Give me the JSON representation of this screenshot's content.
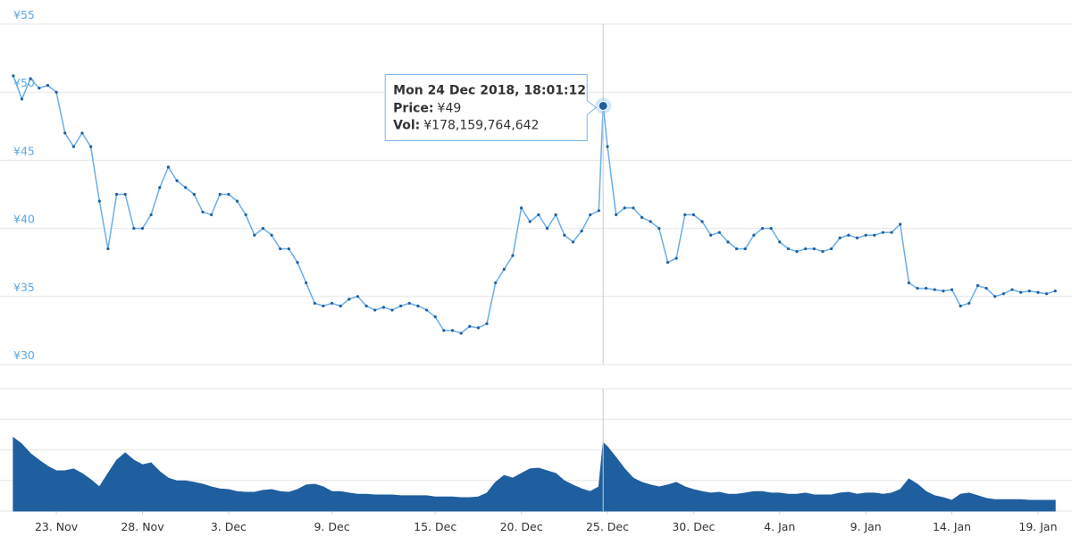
{
  "chart_data": [
    {
      "type": "line",
      "x": [
        "2018-11-20T12:00",
        "2018-11-21T00:00",
        "2018-11-21T12:00",
        "2018-11-22T00:00",
        "2018-11-22T12:00",
        "2018-11-23T00:00",
        "2018-11-23T12:00",
        "2018-11-24T00:00",
        "2018-11-24T12:00",
        "2018-11-25T00:00",
        "2018-11-25T12:00",
        "2018-11-26T00:00",
        "2018-11-26T12:00",
        "2018-11-27T00:00",
        "2018-11-27T12:00",
        "2018-11-28T00:00",
        "2018-11-28T12:00",
        "2018-11-29T00:00",
        "2018-11-29T12:00",
        "2018-11-30T00:00",
        "2018-11-30T12:00",
        "2018-12-01T00:00",
        "2018-12-01T12:00",
        "2018-12-02T00:00",
        "2018-12-02T12:00",
        "2018-12-03T00:00",
        "2018-12-03T12:00",
        "2018-12-04T00:00",
        "2018-12-04T12:00",
        "2018-12-05T00:00",
        "2018-12-05T12:00",
        "2018-12-06T00:00",
        "2018-12-06T12:00",
        "2018-12-07T00:00",
        "2018-12-07T12:00",
        "2018-12-08T00:00",
        "2018-12-08T12:00",
        "2018-12-09T00:00",
        "2018-12-09T12:00",
        "2018-12-10T00:00",
        "2018-12-10T12:00",
        "2018-12-11T00:00",
        "2018-12-11T12:00",
        "2018-12-12T00:00",
        "2018-12-12T12:00",
        "2018-12-13T00:00",
        "2018-12-13T12:00",
        "2018-12-14T00:00",
        "2018-12-14T12:00",
        "2018-12-15T00:00",
        "2018-12-15T12:00",
        "2018-12-16T00:00",
        "2018-12-16T12:00",
        "2018-12-17T00:00",
        "2018-12-17T12:00",
        "2018-12-18T00:00",
        "2018-12-18T12:00",
        "2018-12-19T00:00",
        "2018-12-19T12:00",
        "2018-12-20T00:00",
        "2018-12-20T12:00",
        "2018-12-21T00:00",
        "2018-12-21T12:00",
        "2018-12-22T00:00",
        "2018-12-22T12:00",
        "2018-12-23T00:00",
        "2018-12-23T12:00",
        "2018-12-24T00:00",
        "2018-12-24T12:00",
        "2018-12-24T18:01:12",
        "2018-12-25T00:00",
        "2018-12-25T12:00",
        "2018-12-26T00:00",
        "2018-12-26T12:00",
        "2018-12-27T00:00",
        "2018-12-27T12:00",
        "2018-12-28T00:00",
        "2018-12-28T12:00",
        "2018-12-29T00:00",
        "2018-12-29T12:00",
        "2018-12-30T00:00",
        "2018-12-30T12:00",
        "2018-12-31T00:00",
        "2018-12-31T12:00",
        "2019-01-01T00:00",
        "2019-01-01T12:00",
        "2019-01-02T00:00",
        "2019-01-02T12:00",
        "2019-01-03T00:00",
        "2019-01-03T12:00",
        "2019-01-04T00:00",
        "2019-01-04T12:00",
        "2019-01-05T00:00",
        "2019-01-05T12:00",
        "2019-01-06T00:00",
        "2019-01-06T12:00",
        "2019-01-07T00:00",
        "2019-01-07T12:00",
        "2019-01-08T00:00",
        "2019-01-08T12:00",
        "2019-01-09T00:00",
        "2019-01-09T12:00",
        "2019-01-10T00:00",
        "2019-01-10T12:00",
        "2019-01-11T00:00",
        "2019-01-11T12:00",
        "2019-01-12T00:00",
        "2019-01-12T12:00",
        "2019-01-13T00:00",
        "2019-01-13T12:00",
        "2019-01-14T00:00",
        "2019-01-14T12:00",
        "2019-01-15T00:00",
        "2019-01-15T12:00",
        "2019-01-16T00:00",
        "2019-01-16T12:00",
        "2019-01-17T00:00",
        "2019-01-17T12:00",
        "2019-01-18T00:00",
        "2019-01-18T12:00",
        "2019-01-19T00:00",
        "2019-01-19T12:00",
        "2019-01-20T00:00"
      ],
      "values": [
        51.2,
        49.5,
        51,
        50.3,
        50.5,
        50,
        47,
        46,
        47,
        46,
        42,
        38.5,
        42.5,
        42.5,
        40,
        40,
        41,
        43,
        44.5,
        43.5,
        43,
        42.5,
        41.2,
        41,
        42.5,
        42.5,
        42,
        41,
        39.5,
        40,
        39.5,
        38.5,
        38.5,
        37.5,
        36,
        34.5,
        34.3,
        34.5,
        34.3,
        34.8,
        35,
        34.3,
        34,
        34.2,
        34,
        34.3,
        34.5,
        34.3,
        34,
        33.5,
        32.5,
        32.5,
        32.3,
        32.8,
        32.7,
        33,
        36,
        37,
        38,
        41.5,
        40.5,
        41,
        40,
        41,
        39.5,
        39,
        39.8,
        41,
        41.3,
        49,
        46,
        41,
        41.5,
        41.5,
        40.8,
        40.5,
        40,
        37.5,
        37.8,
        41,
        41,
        40.5,
        39.5,
        39.7,
        39,
        38.5,
        38.5,
        39.5,
        40,
        40,
        39,
        38.5,
        38.3,
        38.5,
        38.5,
        38.3,
        38.5,
        39.3,
        39.5,
        39.3,
        39.5,
        39.5,
        39.7,
        39.7,
        40.3,
        36,
        35.6,
        35.6,
        35.5,
        35.4,
        35.5,
        34.3,
        34.5,
        35.8,
        35.6,
        35,
        35.2,
        35.5,
        35.3,
        35.4,
        35.3,
        35.2,
        35.4
      ],
      "color": "#6aaee9",
      "marker_color": "#1f5f9f",
      "xlim": [
        "2018-11-20T08:24",
        "2019-01-20T07:12"
      ],
      "ylim": [
        30,
        55
      ],
      "yticks": [
        {
          "value": 30,
          "label": "¥30"
        },
        {
          "value": 35,
          "label": "¥35"
        },
        {
          "value": 40,
          "label": "¥40"
        },
        {
          "value": 45,
          "label": "¥45"
        },
        {
          "value": 50,
          "label": "¥50"
        },
        {
          "value": 55,
          "label": "¥55"
        }
      ],
      "grid": true,
      "tooltip": {
        "x": "2018-12-24T18:01:12",
        "title": "Mon 24 Dec 2018, 18:01:12",
        "price_name": "Price:",
        "price_label": "¥49",
        "volume_name": "Vol:",
        "volume_label": "¥178,159,764,642"
      }
    },
    {
      "type": "area",
      "x": [
        "2018-11-20T12:00",
        "2018-11-21T00:00",
        "2018-11-21T12:00",
        "2018-11-22T00:00",
        "2018-11-22T12:00",
        "2018-11-23T00:00",
        "2018-11-23T12:00",
        "2018-11-24T00:00",
        "2018-11-24T12:00",
        "2018-11-25T00:00",
        "2018-11-25T12:00",
        "2018-11-26T00:00",
        "2018-11-26T12:00",
        "2018-11-27T00:00",
        "2018-11-27T12:00",
        "2018-11-28T00:00",
        "2018-11-28T12:00",
        "2018-11-29T00:00",
        "2018-11-29T12:00",
        "2018-11-30T00:00",
        "2018-11-30T12:00",
        "2018-12-01T00:00",
        "2018-12-01T12:00",
        "2018-12-02T00:00",
        "2018-12-02T12:00",
        "2018-12-03T00:00",
        "2018-12-03T12:00",
        "2018-12-04T00:00",
        "2018-12-04T12:00",
        "2018-12-05T00:00",
        "2018-12-05T12:00",
        "2018-12-06T00:00",
        "2018-12-06T12:00",
        "2018-12-07T00:00",
        "2018-12-07T12:00",
        "2018-12-08T00:00",
        "2018-12-08T12:00",
        "2018-12-09T00:00",
        "2018-12-09T12:00",
        "2018-12-10T00:00",
        "2018-12-10T12:00",
        "2018-12-11T00:00",
        "2018-12-11T12:00",
        "2018-12-12T00:00",
        "2018-12-12T12:00",
        "2018-12-13T00:00",
        "2018-12-13T12:00",
        "2018-12-14T00:00",
        "2018-12-14T12:00",
        "2018-12-15T00:00",
        "2018-12-15T12:00",
        "2018-12-16T00:00",
        "2018-12-16T12:00",
        "2018-12-17T00:00",
        "2018-12-17T12:00",
        "2018-12-18T00:00",
        "2018-12-18T12:00",
        "2018-12-19T00:00",
        "2018-12-19T12:00",
        "2018-12-20T00:00",
        "2018-12-20T12:00",
        "2018-12-21T00:00",
        "2018-12-21T12:00",
        "2018-12-22T00:00",
        "2018-12-22T12:00",
        "2018-12-23T00:00",
        "2018-12-23T12:00",
        "2018-12-24T00:00",
        "2018-12-24T12:00",
        "2018-12-24T18:01:12",
        "2018-12-25T00:00",
        "2018-12-25T12:00",
        "2018-12-26T00:00",
        "2018-12-26T12:00",
        "2018-12-27T00:00",
        "2018-12-27T12:00",
        "2018-12-28T00:00",
        "2018-12-28T12:00",
        "2018-12-29T00:00",
        "2018-12-29T12:00",
        "2018-12-30T00:00",
        "2018-12-30T12:00",
        "2018-12-31T00:00",
        "2018-12-31T12:00",
        "2019-01-01T00:00",
        "2019-01-01T12:00",
        "2019-01-02T00:00",
        "2019-01-02T12:00",
        "2019-01-03T00:00",
        "2019-01-03T12:00",
        "2019-01-04T00:00",
        "2019-01-04T12:00",
        "2019-01-05T00:00",
        "2019-01-05T12:00",
        "2019-01-06T00:00",
        "2019-01-06T12:00",
        "2019-01-07T00:00",
        "2019-01-07T12:00",
        "2019-01-08T00:00",
        "2019-01-08T12:00",
        "2019-01-09T00:00",
        "2019-01-09T12:00",
        "2019-01-10T00:00",
        "2019-01-10T12:00",
        "2019-01-11T00:00",
        "2019-01-11T12:00",
        "2019-01-12T00:00",
        "2019-01-12T12:00",
        "2019-01-13T00:00",
        "2019-01-13T12:00",
        "2019-01-14T00:00",
        "2019-01-14T12:00",
        "2019-01-15T00:00",
        "2019-01-15T12:00",
        "2019-01-16T00:00",
        "2019-01-16T12:00",
        "2019-01-17T00:00",
        "2019-01-17T12:00",
        "2019-01-18T00:00",
        "2019-01-18T12:00",
        "2019-01-19T00:00",
        "2019-01-19T12:00",
        "2019-01-20T00:00"
      ],
      "values": [
        192000000000.0,
        175000000000.0,
        150000000000.0,
        133000000000.0,
        117000000000.0,
        105000000000.0,
        105000000000.0,
        110000000000.0,
        98000000000.0,
        82000000000.0,
        63000000000.0,
        98000000000.0,
        133000000000.0,
        152000000000.0,
        133000000000.0,
        121000000000.0,
        126000000000.0,
        103000000000.0,
        86000000000.0,
        79000000000.0,
        79000000000.0,
        75000000000.0,
        70000000000.0,
        63000000000.0,
        58000000000.0,
        56000000000.0,
        51000000000.0,
        49000000000.0,
        49000000000.0,
        54000000000.0,
        56000000000.0,
        51000000000.0,
        49000000000.0,
        56000000000.0,
        68000000000.0,
        70000000000.0,
        63000000000.0,
        51000000000.0,
        51000000000.0,
        47000000000.0,
        44000000000.0,
        44000000000.0,
        42000000000.0,
        42000000000.0,
        42000000000.0,
        40000000000.0,
        40000000000.0,
        40000000000.0,
        40000000000.0,
        37000000000.0,
        37000000000.0,
        37000000000.0,
        35000000000.0,
        35000000000.0,
        37000000000.0,
        47000000000.0,
        75000000000.0,
        93000000000.0,
        86000000000.0,
        98000000000.0,
        110000000000.0,
        112000000000.0,
        105000000000.0,
        98000000000.0,
        79000000000.0,
        68000000000.0,
        58000000000.0,
        51000000000.0,
        63000000000.0,
        178159764642,
        168000000000.0,
        140000000000.0,
        110000000000.0,
        86000000000.0,
        75000000000.0,
        68000000000.0,
        63000000000.0,
        68000000000.0,
        75000000000.0,
        63000000000.0,
        56000000000.0,
        51000000000.0,
        47000000000.0,
        49000000000.0,
        44000000000.0,
        44000000000.0,
        47000000000.0,
        51000000000.0,
        51000000000.0,
        47000000000.0,
        47000000000.0,
        44000000000.0,
        44000000000.0,
        47000000000.0,
        42000000000.0,
        42000000000.0,
        42000000000.0,
        47000000000.0,
        49000000000.0,
        44000000000.0,
        47000000000.0,
        47000000000.0,
        44000000000.0,
        47000000000.0,
        56000000000.0,
        84000000000.0,
        70000000000.0,
        51000000000.0,
        40000000000.0,
        35000000000.0,
        28000000000.0,
        44000000000.0,
        47000000000.0,
        40000000000.0,
        33000000000.0,
        30000000000.0,
        30000000000.0,
        30000000000.0,
        30000000000.0,
        28000000000.0,
        28000000000.0,
        28000000000.0,
        28000000000.0
      ],
      "color": "#1f5f9f",
      "xlim": [
        "2018-11-20T08:24",
        "2019-01-20T07:12"
      ],
      "ylim": [
        0,
        320000000000.0
      ],
      "grid_divisions": 4,
      "xticks": [
        {
          "value": "2018-11-23T00:00",
          "label": "23. Nov"
        },
        {
          "value": "2018-11-28T00:00",
          "label": "28. Nov"
        },
        {
          "value": "2018-12-03T00:00",
          "label": "3. Dec"
        },
        {
          "value": "2018-12-09T00:00",
          "label": "9. Dec"
        },
        {
          "value": "2018-12-15T00:00",
          "label": "15. Dec"
        },
        {
          "value": "2018-12-20T00:00",
          "label": "20. Dec"
        },
        {
          "value": "2018-12-25T00:00",
          "label": "25. Dec"
        },
        {
          "value": "2018-12-30T00:00",
          "label": "30. Dec"
        },
        {
          "value": "2019-01-04T00:00",
          "label": "4. Jan"
        },
        {
          "value": "2019-01-09T00:00",
          "label": "9. Jan"
        },
        {
          "value": "2019-01-14T00:00",
          "label": "14. Jan"
        },
        {
          "value": "2019-01-19T00:00",
          "label": "19. Jan"
        }
      ]
    }
  ]
}
